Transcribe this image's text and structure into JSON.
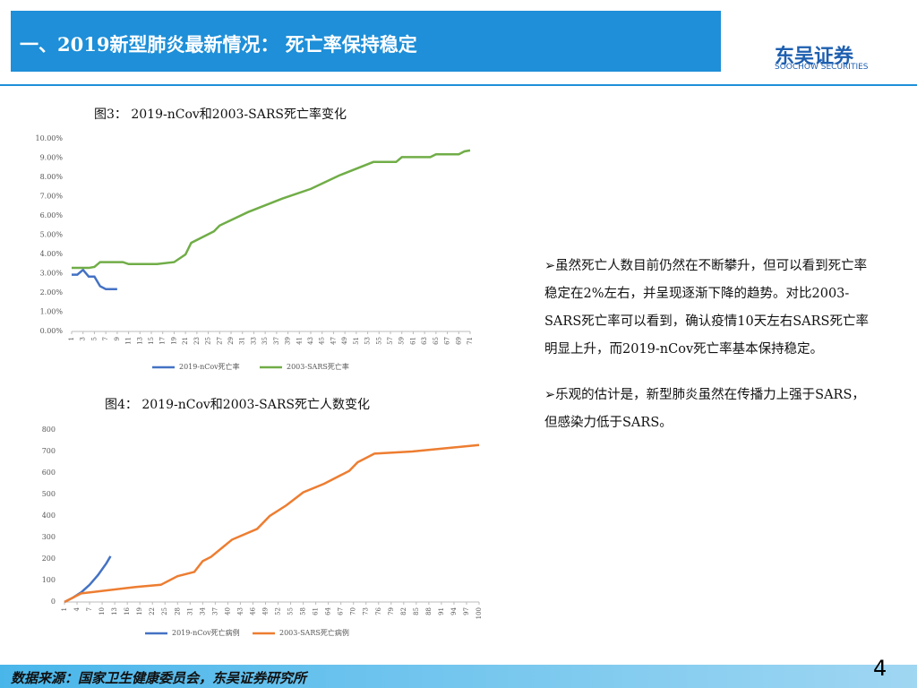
{
  "header": {
    "title": "一、2019新型肺炎最新情况： 死亡率保持稳定",
    "logo": "东吴证券",
    "logo_sub": "SOOCHOW SECURITIES"
  },
  "chart_data": [
    {
      "type": "line",
      "title": "图3： 2019-nCov和2003-SARS死亡率变化",
      "xlim": [
        1,
        71
      ],
      "xticks": [
        1,
        3,
        5,
        7,
        9,
        11,
        13,
        15,
        17,
        19,
        21,
        23,
        25,
        27,
        29,
        31,
        33,
        35,
        37,
        39,
        41,
        43,
        45,
        47,
        49,
        51,
        53,
        55,
        57,
        59,
        61,
        63,
        65,
        67,
        69,
        71
      ],
      "ylim": [
        0,
        10
      ],
      "yticks": [
        {
          "value": 0,
          "label": "0.00%"
        },
        {
          "value": 1,
          "label": "1.00%"
        },
        {
          "value": 2,
          "label": "2.00%"
        },
        {
          "value": 3,
          "label": "3.00%"
        },
        {
          "value": 4,
          "label": "4.00%"
        },
        {
          "value": 5,
          "label": "5.00%"
        },
        {
          "value": 6,
          "label": "6.00%"
        },
        {
          "value": 7,
          "label": "7.00%"
        },
        {
          "value": 8,
          "label": "8.00%"
        },
        {
          "value": 9,
          "label": "9.00%"
        },
        {
          "value": 10,
          "label": "10.00%"
        }
      ],
      "series": [
        {
          "name": "2019-nCov死亡率",
          "color": "#4472c4",
          "x": [
            1,
            2,
            3,
            4,
            5,
            6,
            7,
            8,
            9
          ],
          "values": [
            2.95,
            2.95,
            3.2,
            2.85,
            2.85,
            2.35,
            2.2,
            2.2,
            2.2
          ]
        },
        {
          "name": "2003-SARS死亡率",
          "color": "#70ad47",
          "x": [
            1,
            4,
            5,
            6,
            10,
            11,
            16,
            19,
            21,
            22,
            26,
            27,
            32,
            38,
            43,
            48,
            54,
            58,
            59,
            64,
            65,
            69,
            70,
            71
          ],
          "values": [
            3.3,
            3.3,
            3.35,
            3.6,
            3.6,
            3.5,
            3.5,
            3.6,
            4.0,
            4.6,
            5.2,
            5.5,
            6.2,
            6.9,
            7.4,
            8.1,
            8.8,
            8.8,
            9.05,
            9.05,
            9.2,
            9.2,
            9.35,
            9.4
          ]
        }
      ]
    },
    {
      "type": "line",
      "title": "图4： 2019-nCov和2003-SARS死亡人数变化",
      "xlim": [
        1,
        100
      ],
      "xticks": [
        1,
        4,
        7,
        10,
        13,
        16,
        19,
        22,
        25,
        28,
        31,
        34,
        37,
        40,
        43,
        46,
        49,
        52,
        55,
        58,
        61,
        64,
        67,
        70,
        73,
        76,
        79,
        82,
        85,
        88,
        91,
        94,
        97,
        100
      ],
      "ylim": [
        0,
        800
      ],
      "yticks": [
        0,
        100,
        200,
        300,
        400,
        500,
        600,
        700,
        800
      ],
      "series": [
        {
          "name": "2019-nCov死亡病例",
          "color": "#4472c4",
          "x": [
            1,
            3,
            5,
            7,
            9,
            11,
            12
          ],
          "values": [
            0,
            20,
            45,
            80,
            125,
            180,
            213
          ]
        },
        {
          "name": "2003-SARS死亡病例",
          "color": "#ed7d31",
          "x": [
            1,
            5,
            8,
            18,
            24,
            28,
            32,
            34,
            36,
            41,
            47,
            50,
            54,
            58,
            63,
            69,
            71,
            75,
            84,
            92,
            100
          ],
          "values": [
            0,
            40,
            47,
            70,
            80,
            120,
            140,
            190,
            210,
            290,
            340,
            400,
            450,
            510,
            550,
            610,
            650,
            690,
            700,
            715,
            730
          ]
        }
      ]
    }
  ],
  "bullets": [
    "➢虽然死亡人数目前仍然在不断攀升，但可以看到死亡率稳定在2%左右，并呈现逐渐下降的趋势。对比2003-SARS死亡率可以看到，确认疫情10天左右SARS死亡率明显上升，而2019-nCov死亡率基本保持稳定。",
    "➢乐观的估计是，新型肺炎虽然在传播力上强于SARS，但感染力低于SARS。"
  ],
  "footer": {
    "source": "数据来源：国家卫生健康委员会，东吴证券研究所",
    "page": "4"
  }
}
